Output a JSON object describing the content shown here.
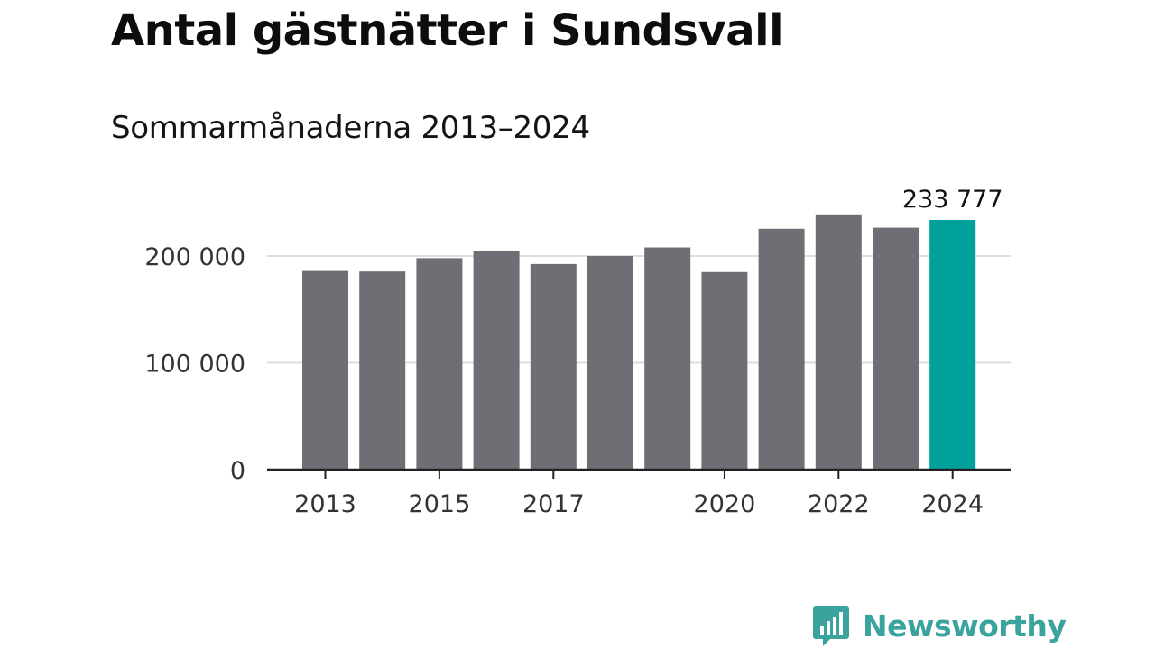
{
  "chart_data": {
    "type": "bar",
    "title": "Antal gästnätter i Sundsvall",
    "subtitle": "Sommarmånaderna 2013–2024",
    "categories": [
      "2013",
      "2014",
      "2015",
      "2016",
      "2017",
      "2018",
      "2019",
      "2020",
      "2021",
      "2022",
      "2023",
      "2024"
    ],
    "values": [
      186000,
      185500,
      198000,
      205000,
      192500,
      200000,
      208000,
      185000,
      225500,
      239000,
      226500,
      233777
    ],
    "x_tick_labels": [
      "2013",
      "2015",
      "2017",
      "2020",
      "2022",
      "2024"
    ],
    "y_ticks": [
      0,
      100000,
      200000
    ],
    "y_tick_labels": [
      "0",
      "100 000",
      "200 000"
    ],
    "ylim": [
      0,
      240000
    ],
    "highlight_label": "233 777",
    "grid": true,
    "xlabel": "",
    "ylabel": "",
    "colors": {
      "bar": "#6f6e75",
      "highlight": "#00a19a",
      "grid": "#dddddd",
      "axis": "#222222"
    }
  },
  "logo": {
    "text": "Newsworthy",
    "icon": "newsworthy-logo-icon",
    "color": "#3aa39d"
  }
}
